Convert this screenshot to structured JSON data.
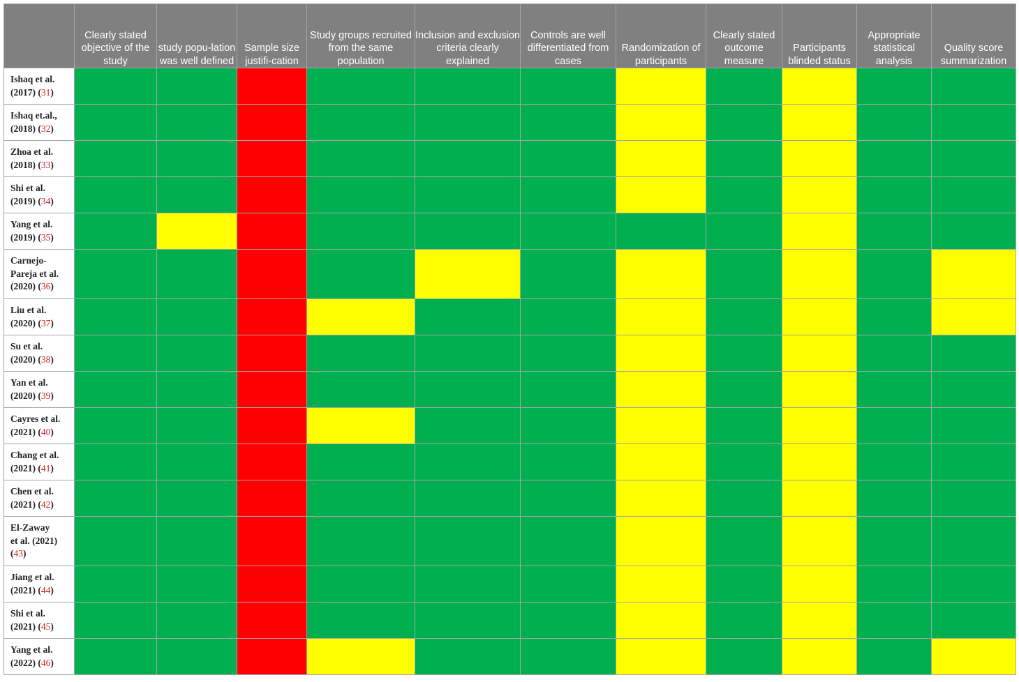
{
  "colors": {
    "green": "#00b050",
    "yellow": "#ffff00",
    "red": "#ff0000",
    "header_bg": "#808080"
  },
  "columns": [
    "",
    "Clearly stated objective of the study",
    "study popu-lation was well defined",
    "Sample size justifi-cation",
    "Study groups recruited from the same population",
    "Inclusion and exclusion criteria clearly explained",
    "Controls are well differentiated from cases",
    "Randomization of participants",
    "Clearly stated outcome measure",
    "Participants blinded status",
    "Appropriate statistical analysis",
    "Quality score summarization"
  ],
  "rows": [
    {
      "label": "Ishaq et al.\n(2017)",
      "ref": "31",
      "ratings": [
        "g",
        "g",
        "r",
        "g",
        "g",
        "g",
        "y",
        "g",
        "y",
        "g",
        "g"
      ]
    },
    {
      "label": "Ishaq et.al.,\n(2018)",
      "ref": "32",
      "ratings": [
        "g",
        "g",
        "r",
        "g",
        "g",
        "g",
        "y",
        "g",
        "y",
        "g",
        "g"
      ]
    },
    {
      "label": "Zhoa et al.\n(2018)",
      "ref": "33",
      "ratings": [
        "g",
        "g",
        "r",
        "g",
        "g",
        "g",
        "y",
        "g",
        "y",
        "g",
        "g"
      ]
    },
    {
      "label": "Shi et al.\n(2019)",
      "ref": "34",
      "ratings": [
        "g",
        "g",
        "r",
        "g",
        "g",
        "g",
        "y",
        "g",
        "y",
        "g",
        "g"
      ]
    },
    {
      "label": "Yang et al.\n(2019)",
      "ref": "35",
      "ratings": [
        "g",
        "y",
        "r",
        "g",
        "g",
        "g",
        "g",
        "g",
        "y",
        "g",
        "g"
      ]
    },
    {
      "label": "Carnejo-\nPareja et al.\n(2020)",
      "ref": "36",
      "ratings": [
        "g",
        "g",
        "r",
        "g",
        "y",
        "g",
        "y",
        "g",
        "y",
        "g",
        "y"
      ]
    },
    {
      "label": "Liu et al.\n(2020)",
      "ref": "37",
      "ratings": [
        "g",
        "g",
        "r",
        "y",
        "g",
        "g",
        "y",
        "g",
        "y",
        "g",
        "y"
      ]
    },
    {
      "label": "Su et al.\n(2020)",
      "ref": "38",
      "ratings": [
        "g",
        "g",
        "r",
        "g",
        "g",
        "g",
        "y",
        "g",
        "y",
        "g",
        "g"
      ]
    },
    {
      "label": "Yan et al.\n(2020)",
      "ref": "39",
      "ratings": [
        "g",
        "g",
        "r",
        "g",
        "g",
        "g",
        "y",
        "g",
        "y",
        "g",
        "g"
      ]
    },
    {
      "label": "Cayres et al.\n(2021)",
      "ref": "40",
      "ratings": [
        "g",
        "g",
        "r",
        "y",
        "g",
        "g",
        "y",
        "g",
        "y",
        "g",
        "g"
      ]
    },
    {
      "label": "Chang et al.\n(2021)",
      "ref": "41",
      "ratings": [
        "g",
        "g",
        "r",
        "g",
        "g",
        "g",
        "y",
        "g",
        "y",
        "g",
        "g"
      ]
    },
    {
      "label": "Chen et al.\n(2021)",
      "ref": "42",
      "ratings": [
        "g",
        "g",
        "r",
        "g",
        "g",
        "g",
        "y",
        "g",
        "y",
        "g",
        "g"
      ]
    },
    {
      "label": "El-Zaway\net al. (2021)\n",
      "ref": "43",
      "ratings": [
        "g",
        "g",
        "r",
        "g",
        "g",
        "g",
        "y",
        "g",
        "y",
        "g",
        "g"
      ]
    },
    {
      "label": "Jiang et al.\n(2021)",
      "ref": "44",
      "ratings": [
        "g",
        "g",
        "r",
        "g",
        "g",
        "g",
        "y",
        "g",
        "y",
        "g",
        "g"
      ]
    },
    {
      "label": "Shi et al.\n(2021)",
      "ref": "45",
      "ratings": [
        "g",
        "g",
        "r",
        "g",
        "g",
        "g",
        "y",
        "g",
        "y",
        "g",
        "g"
      ]
    },
    {
      "label": "Yang et al.\n(2022)",
      "ref": "46",
      "ratings": [
        "g",
        "g",
        "r",
        "y",
        "g",
        "g",
        "y",
        "g",
        "y",
        "g",
        "y"
      ]
    }
  ]
}
